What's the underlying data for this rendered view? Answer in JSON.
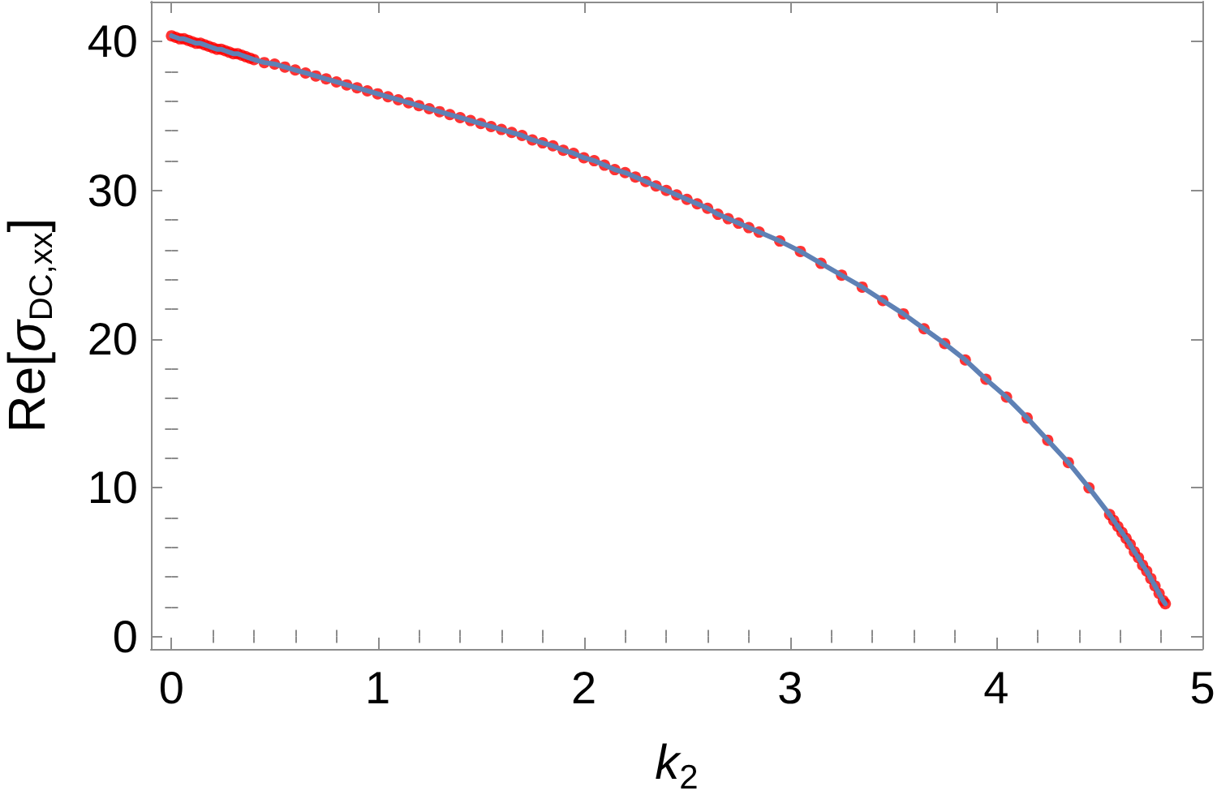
{
  "chart_data": {
    "type": "scatter",
    "xlabel": "k$_{2}$",
    "ylabel": "Re[σ$_{DC,xx}$]",
    "x": [
      0,
      0.02,
      0.04,
      0.06,
      0.08,
      0.1,
      0.12,
      0.14,
      0.16,
      0.18,
      0.2,
      0.22,
      0.24,
      0.26,
      0.28,
      0.3,
      0.32,
      0.34,
      0.36,
      0.38,
      0.4,
      0.45,
      0.5,
      0.55,
      0.6,
      0.65,
      0.7,
      0.75,
      0.8,
      0.85,
      0.9,
      0.95,
      1,
      1.05,
      1.1,
      1.15,
      1.2,
      1.25,
      1.3,
      1.35,
      1.4,
      1.45,
      1.5,
      1.55,
      1.6,
      1.65,
      1.7,
      1.75,
      1.8,
      1.85,
      1.9,
      1.95,
      2,
      2.05,
      2.1,
      2.15,
      2.2,
      2.25,
      2.3,
      2.35,
      2.4,
      2.45,
      2.5,
      2.55,
      2.6,
      2.65,
      2.7,
      2.75,
      2.8,
      2.85,
      2.95,
      3.05,
      3.15,
      3.25,
      3.35,
      3.45,
      3.55,
      3.65,
      3.75,
      3.85,
      3.95,
      4.05,
      4.15,
      4.25,
      4.35,
      4.45,
      4.55,
      4.57,
      4.59,
      4.61,
      4.63,
      4.65,
      4.67,
      4.69,
      4.71,
      4.73,
      4.75,
      4.77,
      4.79,
      4.81,
      4.82
    ],
    "series": [
      {
        "color": "#ff0000",
        "marker": "circle",
        "values": [
          40.4,
          40.3,
          40.2,
          40.2,
          40.1,
          40.0,
          39.9,
          39.9,
          39.8,
          39.7,
          39.6,
          39.5,
          39.5,
          39.4,
          39.3,
          39.2,
          39.2,
          39.1,
          39.0,
          38.9,
          38.8,
          38.6,
          38.5,
          38.3,
          38.1,
          37.9,
          37.7,
          37.5,
          37.3,
          37.1,
          36.9,
          36.7,
          36.5,
          36.3,
          36.1,
          35.9,
          35.7,
          35.5,
          35.3,
          35.1,
          34.9,
          34.7,
          34.5,
          34.3,
          34.1,
          33.9,
          33.7,
          33.4,
          33.2,
          33.0,
          32.7,
          32.5,
          32.2,
          32.0,
          31.7,
          31.4,
          31.2,
          30.9,
          30.6,
          30.3,
          30.0,
          29.7,
          29.4,
          29.1,
          28.8,
          28.4,
          28.1,
          27.8,
          27.5,
          27.2,
          26.6,
          25.9,
          25.1,
          24.3,
          23.5,
          22.6,
          21.7,
          20.7,
          19.7,
          18.6,
          17.3,
          16.1,
          14.7,
          13.2,
          11.7,
          10.0,
          8.2,
          7.8,
          7.4,
          7.0,
          6.6,
          6.2,
          5.7,
          5.3,
          4.8,
          4.4,
          3.9,
          3.4,
          2.9,
          2.4,
          2.2
        ]
      },
      {
        "type": "line",
        "color": "#5e81b5",
        "marker": "none",
        "values": [
          40.4,
          40.3,
          40.2,
          40.2,
          40.1,
          40.0,
          39.9,
          39.9,
          39.8,
          39.7,
          39.6,
          39.5,
          39.5,
          39.4,
          39.3,
          39.2,
          39.2,
          39.1,
          39.0,
          38.9,
          38.8,
          38.6,
          38.5,
          38.3,
          38.1,
          37.9,
          37.7,
          37.5,
          37.3,
          37.1,
          36.9,
          36.7,
          36.5,
          36.3,
          36.1,
          35.9,
          35.7,
          35.5,
          35.3,
          35.1,
          34.9,
          34.7,
          34.5,
          34.3,
          34.1,
          33.9,
          33.7,
          33.4,
          33.2,
          33.0,
          32.7,
          32.5,
          32.2,
          32.0,
          31.7,
          31.4,
          31.2,
          30.9,
          30.6,
          30.3,
          30.0,
          29.7,
          29.4,
          29.1,
          28.8,
          28.4,
          28.1,
          27.8,
          27.5,
          27.2,
          26.6,
          25.9,
          25.1,
          24.3,
          23.5,
          22.6,
          21.7,
          20.7,
          19.7,
          18.6,
          17.3,
          16.1,
          14.7,
          13.2,
          11.7,
          10.0,
          8.2,
          7.8,
          7.4,
          7.0,
          6.6,
          6.2,
          5.7,
          5.3,
          4.8,
          4.4,
          3.9,
          3.4,
          2.9,
          2.4,
          2.2
        ]
      }
    ],
    "xlim": [
      -0.1,
      5
    ],
    "xticks": [
      0,
      {
        "value": 0.2,
        "label": null
      },
      {
        "value": 0.4,
        "label": null
      },
      {
        "value": 0.6,
        "label": null
      },
      {
        "value": 0.8,
        "label": null
      },
      1,
      {
        "value": 1.2,
        "label": null
      },
      {
        "value": 1.4,
        "label": null
      },
      {
        "value": 1.6,
        "label": null
      },
      {
        "value": 1.8,
        "label": null
      },
      2,
      {
        "value": 2.2,
        "label": null
      },
      {
        "value": 2.4,
        "label": null
      },
      {
        "value": 2.6,
        "label": null
      },
      {
        "value": 2.8,
        "label": null
      },
      3,
      {
        "value": 3.2,
        "label": null
      },
      {
        "value": 3.4,
        "label": null
      },
      {
        "value": 3.6,
        "label": null
      },
      {
        "value": 3.8,
        "label": null
      },
      4,
      {
        "value": 4.2,
        "label": null
      },
      {
        "value": 4.4,
        "label": null
      },
      {
        "value": 4.6,
        "label": null
      },
      {
        "value": 4.8,
        "label": null
      },
      5
    ],
    "ylim": [
      -0.84,
      42.7
    ],
    "yticks": [
      0,
      {
        "value": 2,
        "label": null
      },
      {
        "value": 4,
        "label": null
      },
      {
        "value": 6,
        "label": null
      },
      {
        "value": 8,
        "label": null
      },
      10,
      {
        "value": 12,
        "label": null
      },
      {
        "value": 14,
        "label": null
      },
      {
        "value": 16,
        "label": null
      },
      {
        "value": 18,
        "label": null
      },
      20,
      {
        "value": 22,
        "label": null
      },
      {
        "value": 24,
        "label": null
      },
      {
        "value": 26,
        "label": null
      },
      {
        "value": 28,
        "label": null
      },
      30,
      {
        "value": 32,
        "label": null
      },
      {
        "value": 34,
        "label": null
      },
      {
        "value": 36,
        "label": null
      },
      {
        "value": 38,
        "label": null
      },
      40
    ]
  }
}
